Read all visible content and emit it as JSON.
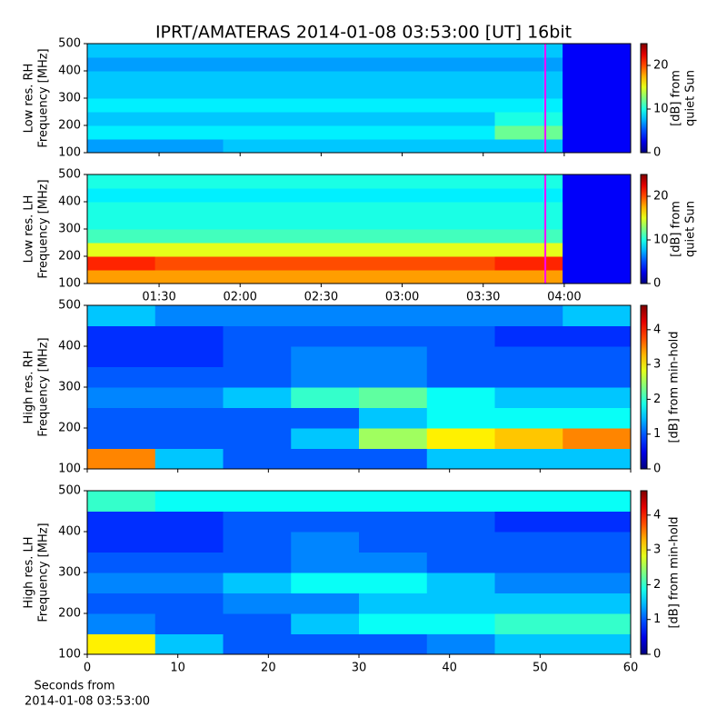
{
  "title": "IPRT/AMATERAS 2014-01-08 03:53:00 [UT]   16bit",
  "xlabel": [
    "Seconds from",
    "2014-01-08 03:53:00"
  ],
  "chart_data": [
    {
      "type": "heatmap",
      "ylabel": [
        "Low res. RH",
        "Frequency [MHz]"
      ],
      "colorbar_label": [
        "[dB] from",
        "quiet Sun"
      ],
      "xlim": [
        63.4,
        264.6
      ],
      "xticks": [
        90,
        120,
        150,
        180,
        210,
        240
      ],
      "xticklabels": false,
      "ylim": [
        100,
        500
      ],
      "yticks": [
        100,
        200,
        300,
        400,
        500
      ],
      "clim": [
        0,
        25
      ],
      "cticks": [
        0,
        10,
        20
      ],
      "cursor": {
        "x": 233,
        "color": "#ff00ff"
      },
      "x_edges": [
        63.4,
        88.5,
        113.7,
        138.8,
        164,
        189.1,
        214.3,
        239.4,
        264.6
      ],
      "y_edges": [
        100,
        150,
        200,
        250,
        300,
        350,
        400,
        450,
        500
      ],
      "z": [
        [
          7,
          7,
          8,
          8,
          8,
          8,
          8,
          3
        ],
        [
          9,
          9,
          9,
          9,
          9,
          9,
          12,
          3
        ],
        [
          8,
          8,
          8,
          8,
          8,
          8,
          10,
          3
        ],
        [
          9,
          9,
          9,
          9,
          9,
          9,
          9,
          3
        ],
        [
          8,
          8,
          8,
          8,
          8,
          8,
          8,
          3
        ],
        [
          8,
          8,
          8,
          8,
          8,
          8,
          8,
          3
        ],
        [
          7,
          7,
          7,
          7,
          7,
          7,
          7,
          3
        ],
        [
          8,
          8,
          8,
          8,
          8,
          8,
          8,
          3
        ]
      ]
    },
    {
      "type": "heatmap",
      "ylabel": [
        "Low res. LH",
        "Frequency [MHz]"
      ],
      "colorbar_label": [
        "[dB] from",
        "quiet Sun"
      ],
      "xlim": [
        63.4,
        264.6
      ],
      "xticks": [
        {
          "value": 90,
          "label": "01:30"
        },
        {
          "value": 120,
          "label": "02:00"
        },
        {
          "value": 150,
          "label": "02:30"
        },
        {
          "value": 180,
          "label": "03:00"
        },
        {
          "value": 210,
          "label": "03:30"
        },
        {
          "value": 240,
          "label": "04:00"
        }
      ],
      "xticklabels": true,
      "ylim": [
        100,
        500
      ],
      "yticks": [
        100,
        200,
        300,
        400,
        500
      ],
      "clim": [
        0,
        25
      ],
      "cticks": [
        0,
        10,
        20
      ],
      "cursor": {
        "x": 233,
        "color": "#ff00ff"
      },
      "x_edges": [
        63.4,
        88.5,
        113.7,
        138.8,
        164,
        189.1,
        214.3,
        239.4,
        264.6
      ],
      "y_edges": [
        100,
        150,
        200,
        250,
        300,
        350,
        400,
        450,
        500
      ],
      "z": [
        [
          18,
          18,
          18,
          18,
          18,
          18,
          18,
          3
        ],
        [
          21,
          20,
          20,
          20,
          20,
          20,
          21,
          3
        ],
        [
          15,
          15,
          15,
          15,
          15,
          15,
          15,
          3
        ],
        [
          11,
          11,
          11,
          11,
          11,
          11,
          11,
          3
        ],
        [
          10,
          10,
          10,
          10,
          10,
          10,
          10,
          3
        ],
        [
          10,
          10,
          10,
          10,
          10,
          10,
          10,
          3
        ],
        [
          9,
          9,
          9,
          9,
          9,
          9,
          9,
          3
        ],
        [
          10,
          10,
          10,
          10,
          10,
          10,
          10,
          3
        ]
      ]
    },
    {
      "type": "heatmap",
      "ylabel": [
        "High res. RH",
        "Frequency [MHz]"
      ],
      "colorbar_label": [
        "[dB] from min-hold"
      ],
      "xlim": [
        0,
        60
      ],
      "xticks": [
        0,
        10,
        20,
        30,
        40,
        50,
        60
      ],
      "xticklabels": false,
      "ylim": [
        100,
        500
      ],
      "yticks": [
        100,
        200,
        300,
        400,
        500
      ],
      "clim": [
        0,
        4.7
      ],
      "cticks": [
        0,
        1,
        2,
        3,
        4
      ],
      "x_edges": [
        0,
        7.5,
        15,
        22.5,
        30,
        37.5,
        45,
        52.5,
        60
      ],
      "y_edges": [
        100,
        150,
        200,
        250,
        300,
        350,
        400,
        450,
        500
      ],
      "z": [
        [
          3.5,
          1.5,
          1,
          1,
          1,
          1.5,
          1.5,
          1.5
        ],
        [
          1,
          1,
          1,
          1.5,
          2.5,
          3,
          3.2,
          3.5
        ],
        [
          1,
          1,
          1,
          1,
          1.5,
          1.8,
          1.8,
          1.8
        ],
        [
          1.2,
          1.2,
          1.5,
          2,
          2.2,
          1.8,
          1.5,
          1.5
        ],
        [
          1,
          1,
          1,
          1.2,
          1.2,
          1,
          1,
          1
        ],
        [
          0.8,
          0.8,
          1,
          1.2,
          1.2,
          1,
          1,
          1
        ],
        [
          0.8,
          0.8,
          1,
          1,
          1,
          1,
          0.8,
          0.8
        ],
        [
          1.5,
          1.2,
          1.2,
          1.2,
          1.2,
          1.2,
          1.2,
          1.5
        ]
      ]
    },
    {
      "type": "heatmap",
      "ylabel": [
        "High res. LH",
        "Frequency [MHz]"
      ],
      "colorbar_label": [
        "[dB] from min-hold"
      ],
      "xlim": [
        0,
        60
      ],
      "xticks": [
        0,
        10,
        20,
        30,
        40,
        50,
        60
      ],
      "xticklabels": true,
      "ylim": [
        100,
        500
      ],
      "yticks": [
        100,
        200,
        300,
        400,
        500
      ],
      "clim": [
        0,
        4.7
      ],
      "cticks": [
        0,
        1,
        2,
        3,
        4
      ],
      "x_edges": [
        0,
        7.5,
        15,
        22.5,
        30,
        37.5,
        45,
        52.5,
        60
      ],
      "y_edges": [
        100,
        150,
        200,
        250,
        300,
        350,
        400,
        450,
        500
      ],
      "z": [
        [
          3,
          1.5,
          1,
          1,
          1,
          1.2,
          1.5,
          1.5
        ],
        [
          1.2,
          1,
          1,
          1.5,
          1.8,
          1.8,
          2,
          2
        ],
        [
          1,
          1,
          1.2,
          1.2,
          1.5,
          1.5,
          1.5,
          1.5
        ],
        [
          1.2,
          1.2,
          1.5,
          1.8,
          1.8,
          1.5,
          1.2,
          1.2
        ],
        [
          1,
          1,
          1,
          1.2,
          1.2,
          1,
          1,
          1
        ],
        [
          0.8,
          0.8,
          1,
          1.2,
          1,
          1,
          1,
          1
        ],
        [
          0.8,
          0.8,
          1,
          1,
          1,
          1,
          0.8,
          0.8
        ],
        [
          2,
          1.8,
          1.8,
          1.8,
          1.8,
          1.8,
          1.8,
          1.8
        ]
      ]
    }
  ]
}
